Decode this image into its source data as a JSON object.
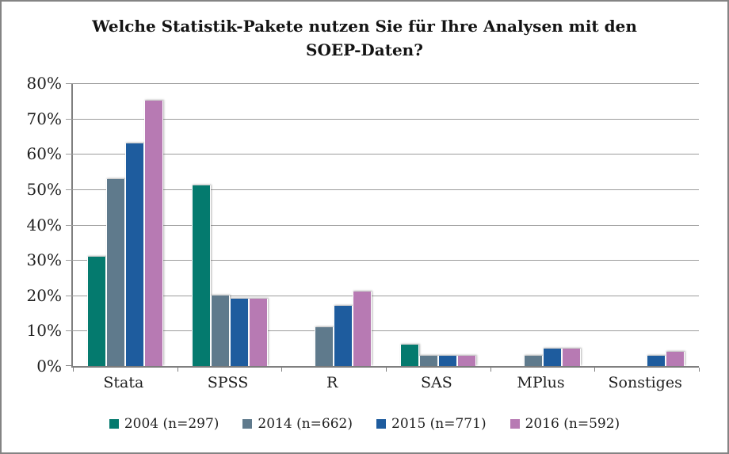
{
  "header": {
    "title_line1": "Welche Statistik-Pakete nutzen Sie für Ihre Analysen mit den",
    "title_line2": "SOEP-Daten?"
  },
  "colors": {
    "series_2004": "#047A6E",
    "series_2014": "#5F7A8C",
    "series_2015": "#1E5C9E",
    "series_2016": "#B77AB3",
    "gridline": "#9c9c9c",
    "axis": "#7f7f7f",
    "frame_border": "#848484"
  },
  "chart_data": {
    "type": "bar",
    "title": "Welche Statistik-Pakete nutzen Sie für Ihre Analysen mit den SOEP-Daten?",
    "categories": [
      "Stata",
      "SPSS",
      "R",
      "SAS",
      "MPlus",
      "Sonstiges"
    ],
    "series": [
      {
        "name": "2004 (n=297)",
        "color": "#047A6E",
        "values": [
          31,
          51,
          0,
          6,
          0,
          0
        ]
      },
      {
        "name": "2014 (n=662)",
        "color": "#5F7A8C",
        "values": [
          53,
          20,
          11,
          3,
          3,
          0
        ]
      },
      {
        "name": "2015 (n=771)",
        "color": "#1E5C9E",
        "values": [
          63,
          19,
          17,
          3,
          5,
          3
        ]
      },
      {
        "name": "2016 (n=592)",
        "color": "#B77AB3",
        "values": [
          75,
          19,
          21,
          3,
          5,
          4
        ]
      }
    ],
    "xlabel": "",
    "ylabel": "",
    "ylim": [
      0,
      80
    ],
    "ytick_step": 10,
    "ytick_format": "percent",
    "grid": true,
    "legend_position": "bottom"
  }
}
